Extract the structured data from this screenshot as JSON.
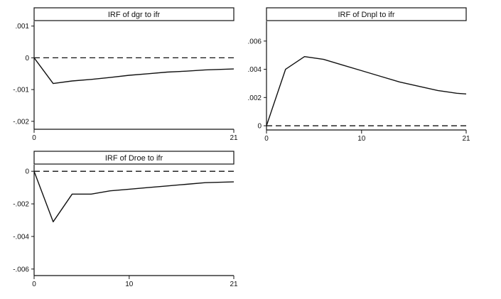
{
  "chart_data": [
    {
      "type": "line",
      "title": "IRF of dgr to ifr",
      "xlabel": "",
      "ylabel": "",
      "xlim": [
        0,
        21
      ],
      "ylim": [
        -0.00225,
        0.00115
      ],
      "xticks": [
        {
          "value": 0,
          "label": "0"
        },
        {
          "value": 21,
          "label": "21"
        }
      ],
      "yticks": [
        {
          "value": 0.001,
          "label": ".001"
        },
        {
          "value": 0,
          "label": "0"
        },
        {
          "value": -0.001,
          "label": "-.001"
        },
        {
          "value": -0.002,
          "label": "-.002"
        }
      ],
      "reference_line": {
        "y": 0,
        "style": "dashed"
      },
      "grid": false,
      "series": [
        {
          "x": [
            0,
            2,
            4,
            6,
            8,
            10,
            12,
            14,
            16,
            18,
            21
          ],
          "values": [
            0,
            -0.00081,
            -0.00073,
            -0.00068,
            -0.00062,
            -0.00055,
            -0.0005,
            -0.00045,
            -0.00042,
            -0.00038,
            -0.00035
          ]
        }
      ]
    },
    {
      "type": "line",
      "title": "IRF of Dnpl to ifr",
      "xlabel": "",
      "ylabel": "",
      "xlim": [
        0,
        21
      ],
      "ylim": [
        -0.0003,
        0.0074
      ],
      "xticks": [
        {
          "value": 0,
          "label": "0"
        },
        {
          "value": 10,
          "label": "10"
        },
        {
          "value": 21,
          "label": "21"
        }
      ],
      "yticks": [
        {
          "value": 0.006,
          "label": ".006"
        },
        {
          "value": 0.004,
          "label": ".004"
        },
        {
          "value": 0.002,
          "label": ".002"
        },
        {
          "value": 0,
          "label": "0"
        }
      ],
      "reference_line": {
        "y": 0,
        "style": "dashed"
      },
      "grid": false,
      "series": [
        {
          "x": [
            0,
            2,
            4,
            6,
            8,
            10,
            12,
            14,
            16,
            18,
            20,
            21
          ],
          "values": [
            0,
            0.004,
            0.0049,
            0.0047,
            0.0043,
            0.0039,
            0.0035,
            0.0031,
            0.0028,
            0.0025,
            0.0023,
            0.00225
          ]
        }
      ]
    },
    {
      "type": "line",
      "title": "IRF of Droe to ifr",
      "xlabel": "",
      "ylabel": "",
      "xlim": [
        0,
        21
      ],
      "ylim": [
        -0.0064,
        0.0004
      ],
      "xticks": [
        {
          "value": 0,
          "label": "0"
        },
        {
          "value": 10,
          "label": "10"
        },
        {
          "value": 21,
          "label": "21"
        }
      ],
      "yticks": [
        {
          "value": 0,
          "label": "0"
        },
        {
          "value": -0.002,
          "label": "-.002"
        },
        {
          "value": -0.004,
          "label": "-.004"
        },
        {
          "value": -0.006,
          "label": "-.006"
        }
      ],
      "reference_line": {
        "y": 0,
        "style": "dashed"
      },
      "grid": false,
      "series": [
        {
          "x": [
            0,
            2,
            4,
            6,
            8,
            10,
            12,
            14,
            16,
            18,
            21
          ],
          "values": [
            0,
            -0.0031,
            -0.0014,
            -0.0014,
            -0.0012,
            -0.0011,
            -0.001,
            -0.0009,
            -0.0008,
            -0.0007,
            -0.00065
          ]
        }
      ]
    }
  ]
}
